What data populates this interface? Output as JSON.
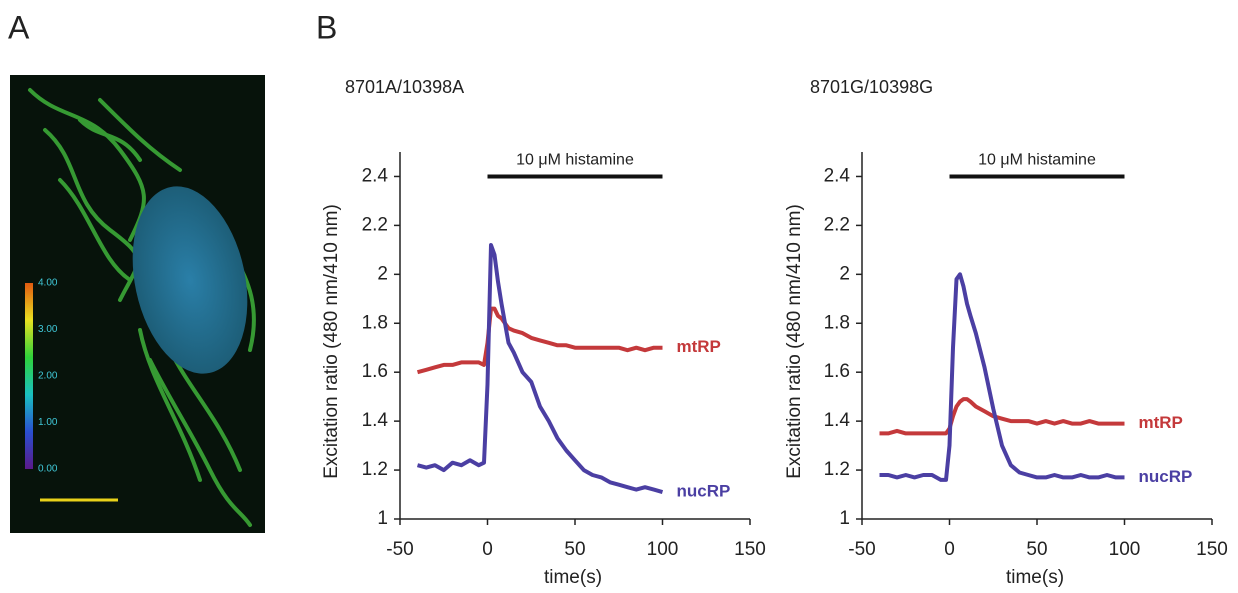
{
  "panel_labels": [
    "A",
    "B"
  ],
  "colorbar": {
    "lim": [
      0,
      4
    ],
    "ticks": [
      {
        "value": 0,
        "label": "0.00"
      },
      {
        "value": 1,
        "label": "1.00"
      },
      {
        "value": 2,
        "label": "2.00"
      },
      {
        "value": 3,
        "label": "3.00"
      },
      {
        "value": 4,
        "label": "4.00"
      }
    ]
  },
  "chart_data": [
    {
      "type": "line",
      "title": "8701A/10398A",
      "x_label": "time(s)",
      "y_label": "Excitation ratio (480 nm/410 nm)",
      "xlim": [
        -50,
        150
      ],
      "xticks": [
        -50,
        0,
        50,
        100,
        150
      ],
      "ylim": [
        1,
        2.5
      ],
      "yticks": [
        1,
        1.2,
        1.4,
        1.6,
        1.8,
        2,
        2.2,
        2.4
      ],
      "stimulus": {
        "label": "10 μM histamine",
        "start": 0,
        "end": 100,
        "level": 2.4
      },
      "x": [
        -40,
        -35,
        -30,
        -25,
        -20,
        -15,
        -10,
        -5,
        -2,
        0,
        2,
        4,
        6,
        8,
        10,
        12,
        15,
        20,
        25,
        30,
        35,
        40,
        45,
        50,
        55,
        60,
        65,
        70,
        75,
        80,
        85,
        90,
        95,
        100
      ],
      "series": [
        {
          "name": "mtRP",
          "color": "#c4393b",
          "values": [
            1.6,
            1.61,
            1.62,
            1.63,
            1.63,
            1.64,
            1.64,
            1.64,
            1.63,
            1.72,
            1.86,
            1.86,
            1.83,
            1.82,
            1.8,
            1.78,
            1.77,
            1.76,
            1.74,
            1.73,
            1.72,
            1.71,
            1.71,
            1.7,
            1.7,
            1.7,
            1.7,
            1.7,
            1.7,
            1.69,
            1.7,
            1.69,
            1.7,
            1.7
          ]
        },
        {
          "name": "nucRP",
          "color": "#4b3fa3",
          "values": [
            1.22,
            1.21,
            1.22,
            1.2,
            1.23,
            1.22,
            1.24,
            1.22,
            1.23,
            1.55,
            2.12,
            2.08,
            1.97,
            1.88,
            1.8,
            1.72,
            1.68,
            1.6,
            1.56,
            1.46,
            1.4,
            1.33,
            1.28,
            1.24,
            1.2,
            1.18,
            1.17,
            1.15,
            1.14,
            1.13,
            1.12,
            1.13,
            1.12,
            1.11
          ]
        }
      ]
    },
    {
      "type": "line",
      "title": "8701G/10398G",
      "x_label": "time(s)",
      "y_label": "Excitation ratio (480 nm/410 nm)",
      "xlim": [
        -50,
        150
      ],
      "xticks": [
        -50,
        0,
        50,
        100,
        150
      ],
      "ylim": [
        1,
        2.5
      ],
      "yticks": [
        1,
        1.2,
        1.4,
        1.6,
        1.8,
        2,
        2.2,
        2.4
      ],
      "stimulus": {
        "label": "10 μM histamine",
        "start": 0,
        "end": 100,
        "level": 2.4
      },
      "x": [
        -40,
        -35,
        -30,
        -25,
        -20,
        -15,
        -10,
        -5,
        -2,
        0,
        2,
        4,
        6,
        8,
        10,
        12,
        15,
        20,
        25,
        30,
        35,
        40,
        45,
        50,
        55,
        60,
        65,
        70,
        75,
        80,
        85,
        90,
        95,
        100
      ],
      "series": [
        {
          "name": "mtRP",
          "color": "#c4393b",
          "values": [
            1.35,
            1.35,
            1.36,
            1.35,
            1.35,
            1.35,
            1.35,
            1.35,
            1.35,
            1.37,
            1.42,
            1.46,
            1.48,
            1.49,
            1.49,
            1.48,
            1.46,
            1.44,
            1.42,
            1.41,
            1.4,
            1.4,
            1.4,
            1.39,
            1.4,
            1.39,
            1.4,
            1.39,
            1.39,
            1.4,
            1.39,
            1.39,
            1.39,
            1.39
          ]
        },
        {
          "name": "nucRP",
          "color": "#4b3fa3",
          "values": [
            1.18,
            1.18,
            1.17,
            1.18,
            1.17,
            1.18,
            1.18,
            1.16,
            1.16,
            1.3,
            1.7,
            1.98,
            2.0,
            1.95,
            1.88,
            1.83,
            1.76,
            1.62,
            1.45,
            1.3,
            1.22,
            1.19,
            1.18,
            1.17,
            1.17,
            1.18,
            1.17,
            1.17,
            1.18,
            1.17,
            1.17,
            1.18,
            1.17,
            1.17
          ]
        }
      ]
    }
  ]
}
